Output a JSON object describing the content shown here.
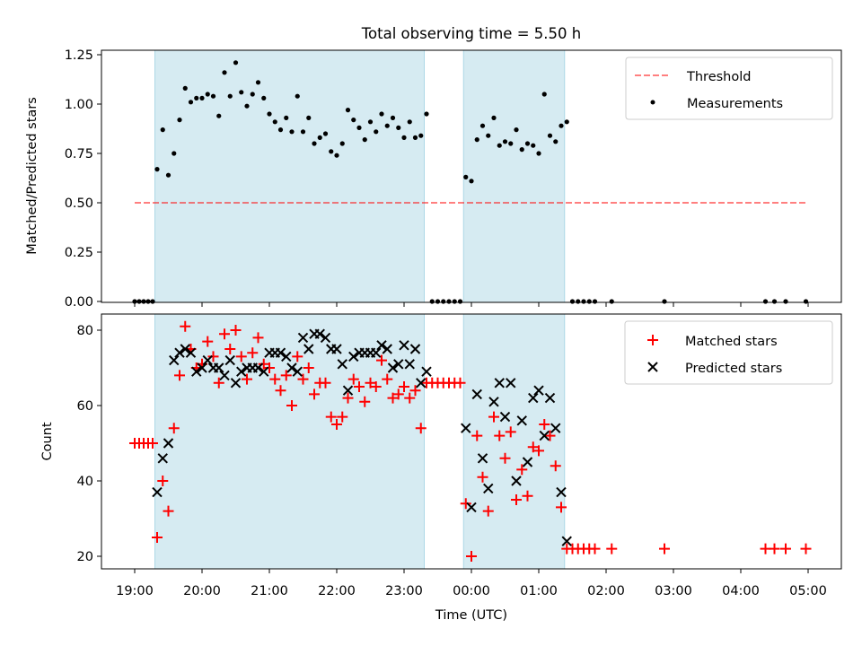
{
  "title": "Total observing time = 5.50 h",
  "colors": {
    "shade": "#add8e6",
    "threshold": "#ff0000",
    "measurements": "#000000",
    "matched": "#ff0000",
    "predicted": "#000000"
  },
  "chart_data": [
    {
      "type": "scatter",
      "ylabel": "Matched/Predicted stars",
      "ylim": [
        0,
        1.27
      ],
      "yticks": [
        0.0,
        0.25,
        0.5,
        0.75,
        1.0,
        1.25
      ],
      "ytick_labels": [
        "0.00",
        "0.25",
        "0.50",
        "0.75",
        "1.00",
        "1.25"
      ],
      "legend_position": "top-right",
      "shaded_intervals": [
        [
          "19:18",
          "23:18"
        ],
        [
          "23:53",
          "01:23"
        ]
      ],
      "threshold": {
        "name": "Threshold",
        "value": 0.5,
        "x": [
          "19:00",
          "05:00"
        ]
      },
      "series": [
        {
          "name": "Measurements",
          "points": [
            [
              "19:00",
              0
            ],
            [
              "19:04",
              0
            ],
            [
              "19:08",
              0
            ],
            [
              "19:12",
              0
            ],
            [
              "19:16",
              0
            ],
            [
              "19:20",
              0.67
            ],
            [
              "19:25",
              0.87
            ],
            [
              "19:30",
              0.64
            ],
            [
              "19:35",
              0.75
            ],
            [
              "19:40",
              0.92
            ],
            [
              "19:45",
              1.08
            ],
            [
              "19:50",
              1.01
            ],
            [
              "19:55",
              1.03
            ],
            [
              "20:00",
              1.03
            ],
            [
              "20:05",
              1.05
            ],
            [
              "20:10",
              1.04
            ],
            [
              "20:15",
              0.94
            ],
            [
              "20:20",
              1.16
            ],
            [
              "20:25",
              1.04
            ],
            [
              "20:30",
              1.21
            ],
            [
              "20:35",
              1.06
            ],
            [
              "20:40",
              0.99
            ],
            [
              "20:45",
              1.05
            ],
            [
              "20:50",
              1.11
            ],
            [
              "20:55",
              1.03
            ],
            [
              "21:00",
              0.95
            ],
            [
              "21:05",
              0.91
            ],
            [
              "21:10",
              0.87
            ],
            [
              "21:15",
              0.93
            ],
            [
              "21:20",
              0.86
            ],
            [
              "21:25",
              1.04
            ],
            [
              "21:30",
              0.86
            ],
            [
              "21:35",
              0.93
            ],
            [
              "21:40",
              0.8
            ],
            [
              "21:45",
              0.83
            ],
            [
              "21:50",
              0.85
            ],
            [
              "21:55",
              0.76
            ],
            [
              "22:00",
              0.74
            ],
            [
              "22:05",
              0.8
            ],
            [
              "22:10",
              0.97
            ],
            [
              "22:15",
              0.92
            ],
            [
              "22:20",
              0.88
            ],
            [
              "22:25",
              0.82
            ],
            [
              "22:30",
              0.91
            ],
            [
              "22:35",
              0.86
            ],
            [
              "22:40",
              0.95
            ],
            [
              "22:45",
              0.89
            ],
            [
              "22:50",
              0.93
            ],
            [
              "22:55",
              0.88
            ],
            [
              "23:00",
              0.83
            ],
            [
              "23:05",
              0.91
            ],
            [
              "23:10",
              0.83
            ],
            [
              "23:15",
              0.84
            ],
            [
              "23:20",
              0.95
            ],
            [
              "23:25",
              0
            ],
            [
              "23:30",
              0
            ],
            [
              "23:35",
              0
            ],
            [
              "23:40",
              0
            ],
            [
              "23:45",
              0
            ],
            [
              "23:50",
              0
            ],
            [
              "23:55",
              0.63
            ],
            [
              "00:00",
              0.61
            ],
            [
              "00:05",
              0.82
            ],
            [
              "00:10",
              0.89
            ],
            [
              "00:15",
              0.84
            ],
            [
              "00:20",
              0.93
            ],
            [
              "00:25",
              0.79
            ],
            [
              "00:30",
              0.81
            ],
            [
              "00:35",
              0.8
            ],
            [
              "00:40",
              0.87
            ],
            [
              "00:45",
              0.77
            ],
            [
              "00:50",
              0.8
            ],
            [
              "00:55",
              0.79
            ],
            [
              "01:00",
              0.75
            ],
            [
              "01:05",
              1.05
            ],
            [
              "01:10",
              0.84
            ],
            [
              "01:15",
              0.81
            ],
            [
              "01:20",
              0.89
            ],
            [
              "01:25",
              0.91
            ],
            [
              "01:30",
              0
            ],
            [
              "01:35",
              0
            ],
            [
              "01:40",
              0
            ],
            [
              "01:45",
              0
            ],
            [
              "01:50",
              0
            ],
            [
              "02:05",
              0
            ],
            [
              "02:52",
              0
            ],
            [
              "04:22",
              0
            ],
            [
              "04:30",
              0
            ],
            [
              "04:40",
              0
            ],
            [
              "04:58",
              0
            ]
          ]
        }
      ]
    },
    {
      "type": "scatter",
      "xlabel": "Time (UTC)",
      "ylabel": "Count",
      "ylim": [
        17,
        84
      ],
      "yticks": [
        20,
        40,
        60,
        80
      ],
      "ytick_labels": [
        "20",
        "40",
        "60",
        "80"
      ],
      "xticks": [
        "19:00",
        "20:00",
        "21:00",
        "22:00",
        "23:00",
        "00:00",
        "01:00",
        "02:00",
        "03:00",
        "04:00",
        "05:00"
      ],
      "legend_position": "top-right",
      "shaded_intervals": [
        [
          "19:18",
          "23:18"
        ],
        [
          "23:53",
          "01:23"
        ]
      ],
      "series": [
        {
          "name": "Matched stars",
          "points": [
            [
              "19:00",
              50
            ],
            [
              "19:04",
              50
            ],
            [
              "19:08",
              50
            ],
            [
              "19:12",
              50
            ],
            [
              "19:16",
              50
            ],
            [
              "19:20",
              25
            ],
            [
              "19:25",
              40
            ],
            [
              "19:30",
              32
            ],
            [
              "19:35",
              54
            ],
            [
              "19:40",
              68
            ],
            [
              "19:45",
              81
            ],
            [
              "19:50",
              75
            ],
            [
              "19:55",
              70
            ],
            [
              "20:00",
              71
            ],
            [
              "20:05",
              77
            ],
            [
              "20:10",
              73
            ],
            [
              "20:15",
              66
            ],
            [
              "20:20",
              79
            ],
            [
              "20:25",
              75
            ],
            [
              "20:30",
              80
            ],
            [
              "20:35",
              73
            ],
            [
              "20:40",
              67
            ],
            [
              "20:45",
              74
            ],
            [
              "20:50",
              78
            ],
            [
              "20:55",
              71
            ],
            [
              "21:00",
              70
            ],
            [
              "21:05",
              67
            ],
            [
              "21:10",
              64
            ],
            [
              "21:15",
              68
            ],
            [
              "21:20",
              60
            ],
            [
              "21:25",
              73
            ],
            [
              "21:30",
              67
            ],
            [
              "21:35",
              70
            ],
            [
              "21:40",
              63
            ],
            [
              "21:45",
              66
            ],
            [
              "21:50",
              66
            ],
            [
              "21:55",
              57
            ],
            [
              "22:00",
              55
            ],
            [
              "22:05",
              57
            ],
            [
              "22:10",
              62
            ],
            [
              "22:15",
              67
            ],
            [
              "22:20",
              65
            ],
            [
              "22:25",
              61
            ],
            [
              "22:30",
              66
            ],
            [
              "22:35",
              65
            ],
            [
              "22:40",
              72
            ],
            [
              "22:45",
              67
            ],
            [
              "22:50",
              62
            ],
            [
              "22:55",
              63
            ],
            [
              "23:00",
              65
            ],
            [
              "23:05",
              62
            ],
            [
              "23:10",
              64
            ],
            [
              "23:15",
              54
            ],
            [
              "23:20",
              66
            ],
            [
              "23:25",
              66
            ],
            [
              "23:30",
              66
            ],
            [
              "23:35",
              66
            ],
            [
              "23:40",
              66
            ],
            [
              "23:45",
              66
            ],
            [
              "23:50",
              66
            ],
            [
              "23:55",
              34
            ],
            [
              "00:00",
              20
            ],
            [
              "00:05",
              52
            ],
            [
              "00:10",
              41
            ],
            [
              "00:15",
              32
            ],
            [
              "00:20",
              57
            ],
            [
              "00:25",
              52
            ],
            [
              "00:30",
              46
            ],
            [
              "00:35",
              53
            ],
            [
              "00:40",
              35
            ],
            [
              "00:45",
              43
            ],
            [
              "00:50",
              36
            ],
            [
              "00:55",
              49
            ],
            [
              "01:00",
              48
            ],
            [
              "01:05",
              55
            ],
            [
              "01:10",
              52
            ],
            [
              "01:15",
              44
            ],
            [
              "01:20",
              33
            ],
            [
              "01:25",
              22
            ],
            [
              "01:30",
              22
            ],
            [
              "01:35",
              22
            ],
            [
              "01:40",
              22
            ],
            [
              "01:45",
              22
            ],
            [
              "01:50",
              22
            ],
            [
              "02:05",
              22
            ],
            [
              "02:52",
              22
            ],
            [
              "04:22",
              22
            ],
            [
              "04:30",
              22
            ],
            [
              "04:40",
              22
            ],
            [
              "04:58",
              22
            ]
          ]
        },
        {
          "name": "Predicted stars",
          "points": [
            [
              "19:20",
              37
            ],
            [
              "19:25",
              46
            ],
            [
              "19:30",
              50
            ],
            [
              "19:35",
              72
            ],
            [
              "19:40",
              74
            ],
            [
              "19:45",
              75
            ],
            [
              "19:50",
              74
            ],
            [
              "19:55",
              69
            ],
            [
              "20:00",
              70
            ],
            [
              "20:05",
              72
            ],
            [
              "20:10",
              70
            ],
            [
              "20:15",
              70
            ],
            [
              "20:20",
              68
            ],
            [
              "20:25",
              72
            ],
            [
              "20:30",
              66
            ],
            [
              "20:35",
              69
            ],
            [
              "20:40",
              70
            ],
            [
              "20:45",
              70
            ],
            [
              "20:50",
              70
            ],
            [
              "20:55",
              69
            ],
            [
              "21:00",
              74
            ],
            [
              "21:05",
              74
            ],
            [
              "21:10",
              74
            ],
            [
              "21:15",
              73
            ],
            [
              "21:20",
              70
            ],
            [
              "21:25",
              69
            ],
            [
              "21:30",
              78
            ],
            [
              "21:35",
              75
            ],
            [
              "21:40",
              79
            ],
            [
              "21:45",
              79
            ],
            [
              "21:50",
              78
            ],
            [
              "21:55",
              75
            ],
            [
              "22:00",
              75
            ],
            [
              "22:05",
              71
            ],
            [
              "22:10",
              64
            ],
            [
              "22:15",
              73
            ],
            [
              "22:20",
              74
            ],
            [
              "22:25",
              74
            ],
            [
              "22:30",
              74
            ],
            [
              "22:35",
              74
            ],
            [
              "22:40",
              76
            ],
            [
              "22:45",
              75
            ],
            [
              "22:50",
              70
            ],
            [
              "22:55",
              71
            ],
            [
              "23:00",
              76
            ],
            [
              "23:05",
              71
            ],
            [
              "23:10",
              75
            ],
            [
              "23:15",
              66
            ],
            [
              "23:20",
              69
            ],
            [
              "23:55",
              54
            ],
            [
              "00:00",
              33
            ],
            [
              "00:05",
              63
            ],
            [
              "00:10",
              46
            ],
            [
              "00:15",
              38
            ],
            [
              "00:20",
              61
            ],
            [
              "00:25",
              66
            ],
            [
              "00:30",
              57
            ],
            [
              "00:35",
              66
            ],
            [
              "00:40",
              40
            ],
            [
              "00:45",
              56
            ],
            [
              "00:50",
              45
            ],
            [
              "00:55",
              62
            ],
            [
              "01:00",
              64
            ],
            [
              "01:05",
              52
            ],
            [
              "01:10",
              62
            ],
            [
              "01:15",
              54
            ],
            [
              "01:20",
              37
            ],
            [
              "01:25",
              24
            ]
          ]
        }
      ]
    }
  ]
}
